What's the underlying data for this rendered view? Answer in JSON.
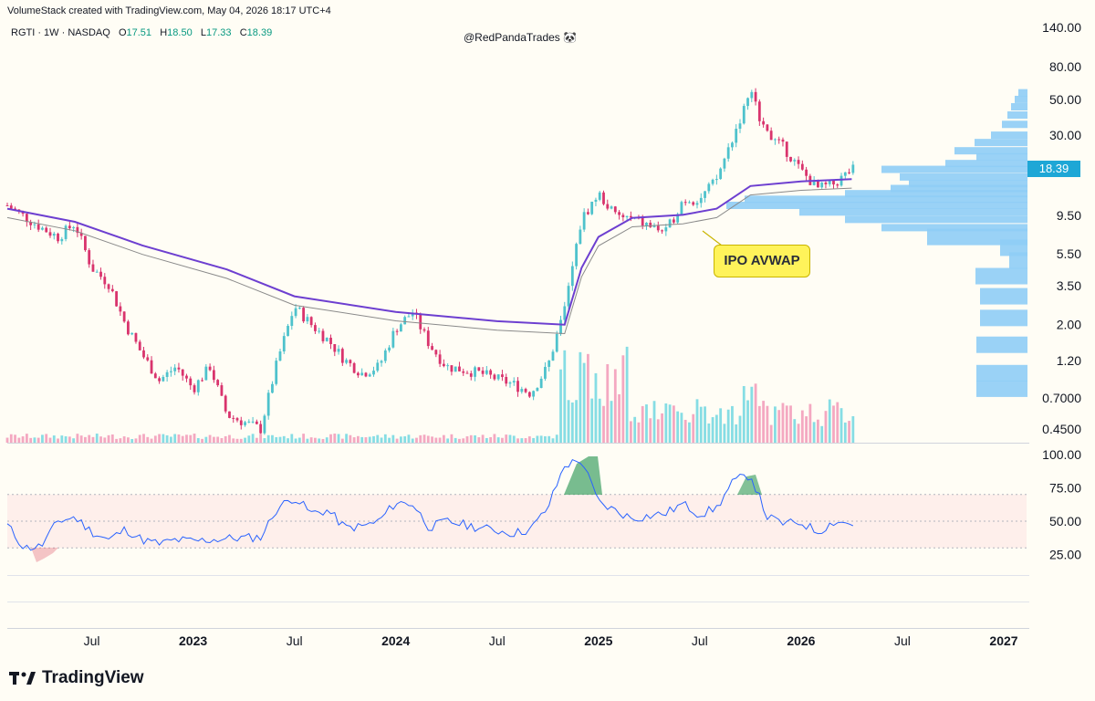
{
  "header": {
    "created_text": "VolumeStack created with TradingView.com, May 04, 2026 18:17 UTC+4",
    "symbol": "RGTI · 1W · NASDAQ",
    "o_label": "O",
    "o_value": "17.51",
    "h_label": "H",
    "h_value": "18.50",
    "l_label": "L",
    "l_value": "17.33",
    "c_label": "C",
    "c_value": "18.39",
    "watermark": "@RedPandaTrades 🐼"
  },
  "branding": {
    "logo_text": "TradingView"
  },
  "chart_data": {
    "type": "candlestick",
    "interval": "1W",
    "ticker": "RGTI",
    "exchange": "NASDAQ",
    "scale": "log",
    "price_axis_ticks": [
      "140.00",
      "80.00",
      "50.00",
      "30.00",
      "9.50",
      "5.50",
      "3.50",
      "2.00",
      "1.20",
      "0.7000",
      "0.4500"
    ],
    "rsi_axis_ticks": [
      "100.00",
      "75.00",
      "50.00",
      "25.00"
    ],
    "rsi_band": [
      30,
      70
    ],
    "time_axis_labels": [
      {
        "label": "Jul",
        "bold": false
      },
      {
        "label": "2023",
        "bold": true
      },
      {
        "label": "Jul",
        "bold": false
      },
      {
        "label": "2024",
        "bold": true
      },
      {
        "label": "Jul",
        "bold": false
      },
      {
        "label": "2025",
        "bold": true
      },
      {
        "label": "Jul",
        "bold": false
      },
      {
        "label": "2026",
        "bold": true
      },
      {
        "label": "Jul",
        "bold": false
      },
      {
        "label": "2027",
        "bold": true
      }
    ],
    "last_price": "18.39",
    "annotation": "IPO AVWAP",
    "colors": {
      "up": "#4ec2cc",
      "down": "#d9346d",
      "avwap": "#6d3fd0",
      "avwap_band": "#8a8a8a",
      "vol_up": "#86dde4",
      "vol_down": "#f4a8c1",
      "vp": "#8fcdf6",
      "rsi": "#2962ff"
    },
    "price_path": [
      [
        "2022-02",
        11
      ],
      [
        "2022-04",
        8.0
      ],
      [
        "2022-05",
        7.0
      ],
      [
        "2022-06",
        8.5
      ],
      [
        "2022-07",
        4.5
      ],
      [
        "2022-08",
        3.6
      ],
      [
        "2022-09",
        2.0
      ],
      [
        "2022-10",
        1.3
      ],
      [
        "2022-11",
        0.9
      ],
      [
        "2022-12",
        1.1
      ],
      [
        "2023-01",
        0.8
      ],
      [
        "2023-02",
        1.1
      ],
      [
        "2023-03",
        0.55
      ],
      [
        "2023-05",
        0.45
      ],
      [
        "2023-06",
        1.2
      ],
      [
        "2023-07",
        2.6
      ],
      [
        "2023-08",
        2.0
      ],
      [
        "2023-09",
        1.6
      ],
      [
        "2023-10",
        1.2
      ],
      [
        "2023-11",
        1.0
      ],
      [
        "2023-12",
        1.1
      ],
      [
        "2024-01",
        1.9
      ],
      [
        "2024-02",
        2.4
      ],
      [
        "2024-03",
        1.5
      ],
      [
        "2024-04",
        1.1
      ],
      [
        "2024-06",
        1.0
      ],
      [
        "2024-08",
        0.85
      ],
      [
        "2024-09",
        0.75
      ],
      [
        "2024-10",
        1.1
      ],
      [
        "2024-11",
        2.5
      ],
      [
        "2024-12",
        9.0
      ],
      [
        "2025-01",
        13
      ],
      [
        "2025-02",
        9.5
      ],
      [
        "2025-03",
        9.0
      ],
      [
        "2025-05",
        7.5
      ],
      [
        "2025-06",
        12
      ],
      [
        "2025-07",
        12
      ],
      [
        "2025-08",
        16
      ],
      [
        "2025-09",
        30
      ],
      [
        "2025-10",
        55
      ],
      [
        "2025-11",
        30
      ],
      [
        "2025-12",
        25
      ],
      [
        "2026-01",
        18
      ],
      [
        "2026-02",
        14
      ],
      [
        "2026-03",
        15
      ],
      [
        "2026-04",
        18.39
      ]
    ],
    "avwap_path": [
      [
        "2022-02",
        10.5
      ],
      [
        "2022-06",
        8.7
      ],
      [
        "2022-10",
        6.2
      ],
      [
        "2023-03",
        4.4
      ],
      [
        "2023-07",
        3.0
      ],
      [
        "2024-01",
        2.4
      ],
      [
        "2024-07",
        2.1
      ],
      [
        "2024-11",
        2.0
      ],
      [
        "2024-12",
        4.5
      ],
      [
        "2025-01",
        7.0
      ],
      [
        "2025-03",
        9.2
      ],
      [
        "2025-06",
        9.6
      ],
      [
        "2025-08",
        10.5
      ],
      [
        "2025-10",
        14.5
      ],
      [
        "2026-01",
        15.5
      ],
      [
        "2026-04",
        16.0
      ]
    ],
    "rsi_path": [
      [
        "2022-02",
        47
      ],
      [
        "2022-03",
        30
      ],
      [
        "2022-04",
        31
      ],
      [
        "2022-05",
        50
      ],
      [
        "2022-06",
        53
      ],
      [
        "2022-07",
        42
      ],
      [
        "2022-08",
        36
      ],
      [
        "2022-09",
        44
      ],
      [
        "2022-10",
        36
      ],
      [
        "2022-11",
        33
      ],
      [
        "2022-12",
        36
      ],
      [
        "2023-01",
        35
      ],
      [
        "2023-03",
        37
      ],
      [
        "2023-05",
        38
      ],
      [
        "2023-06",
        60
      ],
      [
        "2023-07",
        68
      ],
      [
        "2023-08",
        56
      ],
      [
        "2023-09",
        58
      ],
      [
        "2023-10",
        45
      ],
      [
        "2023-11",
        46
      ],
      [
        "2023-12",
        50
      ],
      [
        "2024-01",
        64
      ],
      [
        "2024-02",
        63
      ],
      [
        "2024-03",
        45
      ],
      [
        "2024-04",
        50
      ],
      [
        "2024-06",
        45
      ],
      [
        "2024-08",
        41
      ],
      [
        "2024-09",
        44
      ],
      [
        "2024-10",
        60
      ],
      [
        "2024-11",
        92
      ],
      [
        "2024-12",
        96
      ],
      [
        "2025-01",
        64
      ],
      [
        "2025-02",
        58
      ],
      [
        "2025-03",
        52
      ],
      [
        "2025-05",
        56
      ],
      [
        "2025-06",
        63
      ],
      [
        "2025-07",
        55
      ],
      [
        "2025-08",
        60
      ],
      [
        "2025-09",
        80
      ],
      [
        "2025-10",
        85
      ],
      [
        "2025-11",
        53
      ],
      [
        "2025-12",
        48
      ],
      [
        "2026-01",
        49
      ],
      [
        "2026-02",
        42
      ],
      [
        "2026-03",
        50
      ],
      [
        "2026-04",
        48
      ]
    ]
  }
}
